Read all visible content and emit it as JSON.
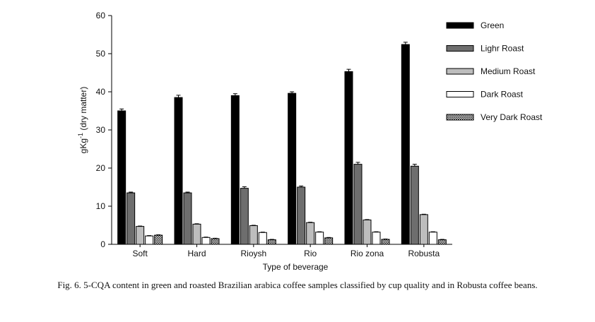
{
  "chart_data": {
    "type": "bar",
    "title": "",
    "xlabel": "Type of beverage",
    "ylabel": "gKg-1 (dry matter)",
    "ylim": [
      0,
      60
    ],
    "yticks": [
      0,
      10,
      20,
      30,
      40,
      50,
      60
    ],
    "categories": [
      "Soft",
      "Hard",
      "Rioysh",
      "Rio",
      "Rio zona",
      "Robusta"
    ],
    "series": [
      {
        "name": "Green",
        "style": "black",
        "values": [
          35.0,
          38.5,
          39.0,
          39.6,
          45.3,
          52.4
        ],
        "errors": [
          0.5,
          0.6,
          0.5,
          0.4,
          0.6,
          0.6
        ]
      },
      {
        "name": "Lighr Roast",
        "style": "darkgray",
        "values": [
          13.5,
          13.5,
          14.7,
          15.0,
          21.0,
          20.5
        ],
        "errors": [
          0.2,
          0.2,
          0.4,
          0.3,
          0.5,
          0.5
        ]
      },
      {
        "name": "Medium Roast",
        "style": "lightgray",
        "values": [
          4.7,
          5.3,
          4.9,
          5.7,
          6.4,
          7.8
        ],
        "errors": [
          0.1,
          0.1,
          0.1,
          0.1,
          0.1,
          0.1
        ]
      },
      {
        "name": "Dark Roast",
        "style": "white",
        "values": [
          2.2,
          1.8,
          3.1,
          3.2,
          3.2,
          3.2
        ],
        "errors": [
          0.1,
          0.1,
          0.1,
          0.1,
          0.1,
          0.1
        ]
      },
      {
        "name": "Very Dark Roast",
        "style": "hatched",
        "values": [
          2.4,
          1.5,
          1.2,
          1.7,
          1.3,
          1.2
        ],
        "errors": [
          0.1,
          0.1,
          0.1,
          0.1,
          0.1,
          0.1
        ]
      }
    ],
    "legend_position": "top-right",
    "grid": false
  },
  "colors": {
    "green": "#000000",
    "lighr_roast": "#6e6e6e",
    "medium_roast": "#bdbdbd",
    "dark_roast": "#ffffff",
    "very_dark_roast": "#2a2a2a"
  },
  "ylabel_parts": {
    "pre": "gKg",
    "sup": "-1",
    "post": " (dry matter)"
  },
  "caption": "Fig. 6. 5-CQA content in green and roasted Brazilian arabica coffee samples classified by cup quality and in Robusta coffee beans."
}
